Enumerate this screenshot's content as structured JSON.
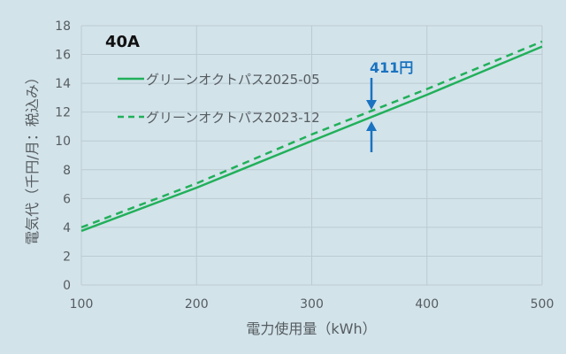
{
  "chart_data": {
    "type": "line",
    "title": "40A",
    "xlabel": "電力使用量（kWh）",
    "ylabel": "電気代（千円/月：税込み）",
    "xlim": [
      100,
      500
    ],
    "ylim": [
      0,
      18
    ],
    "x_ticks": [
      "100",
      "200",
      "300",
      "400",
      "500"
    ],
    "y_ticks": [
      "0",
      "2",
      "4",
      "6",
      "8",
      "10",
      "12",
      "14",
      "16",
      "18"
    ],
    "grid": true,
    "legend_position": "upper-left",
    "x": [
      100,
      200,
      300,
      400,
      500
    ],
    "series": [
      {
        "name": "グリーンオクトパス2025-05",
        "style": "solid",
        "color": "#21b05a",
        "values": [
          3.75,
          6.75,
          10.0,
          13.2,
          16.55
        ]
      },
      {
        "name": "グリーンオクトパス2023-12",
        "style": "dashed",
        "color": "#21b05a",
        "values": [
          4.0,
          7.05,
          10.45,
          13.6,
          16.9
        ]
      }
    ],
    "annotations": [
      {
        "text": "411円",
        "x": 350,
        "color": "#1a73c0"
      }
    ]
  },
  "labels": {
    "panel_title": "40A",
    "annotation": "411円",
    "legend_solid": "グリーンオクトパス2025-05",
    "legend_dashed": "グリーンオクトパス2023-12",
    "xlabel": "電力使用量（kWh）",
    "ylabel": "電気代（千円/月：税込み）"
  }
}
